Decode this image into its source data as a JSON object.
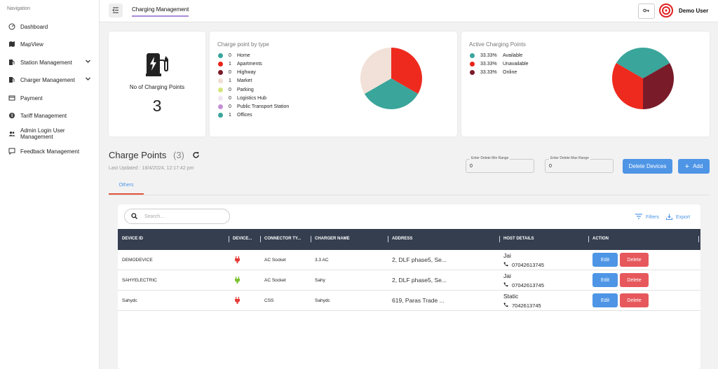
{
  "sidebar": {
    "title": "Navigation",
    "items": [
      {
        "label": "Dashboard",
        "icon": "gauge-icon"
      },
      {
        "label": "MapView",
        "icon": "map-icon"
      },
      {
        "label": "Station Management",
        "icon": "station-icon",
        "expandable": true
      },
      {
        "label": "Charger Management",
        "icon": "charger-icon",
        "expandable": true
      },
      {
        "label": "Payment",
        "icon": "card-icon"
      },
      {
        "label": "Tariff Management",
        "icon": "dollar-icon"
      },
      {
        "label": "Admin Login User Management",
        "icon": "users-icon"
      },
      {
        "label": "Feedback Management",
        "icon": "feedback-icon"
      }
    ]
  },
  "header": {
    "tab": "Charging Management",
    "user_name": "Demo User"
  },
  "summary": {
    "label": "No of Charging Points",
    "count": "3"
  },
  "type_card": {
    "title": "Charge point by type",
    "legend": [
      {
        "count": "0",
        "label": "Home",
        "color": "#3aa59b"
      },
      {
        "count": "1",
        "label": "Apartments",
        "color": "#e8231a"
      },
      {
        "count": "0",
        "label": "Highway",
        "color": "#7a1b2a"
      },
      {
        "count": "1",
        "label": "Market",
        "color": "#f0ddd3"
      },
      {
        "count": "0",
        "label": "Parking",
        "color": "#d4e77e"
      },
      {
        "count": "0",
        "label": "Logistics Hub",
        "color": "#f0e4f2"
      },
      {
        "count": "0",
        "label": "Public Transport Station",
        "color": "#c390d4"
      },
      {
        "count": "1",
        "label": "Offices",
        "color": "#3aa59b"
      }
    ]
  },
  "active_card": {
    "title": "Active Charging Points",
    "legend": [
      {
        "pct": "33.33%",
        "label": "Available",
        "color": "#3aa59b"
      },
      {
        "pct": "33.33%",
        "label": "Unavailable",
        "color": "#e8231a"
      },
      {
        "pct": "33.33%",
        "label": "Online",
        "color": "#7a1b2a"
      }
    ]
  },
  "charge_points": {
    "title": "Charge Points",
    "count": "(3)",
    "last_updated": "Last Updated : 18/4/2024, 12:17:42 pm",
    "min_range_label": "Enter Delete Min Range",
    "min_range_value": "0",
    "max_range_label": "Enter Delete Max Range",
    "max_range_value": "0",
    "delete_devices": "Delete Devices",
    "add": "Add",
    "tab": "Others"
  },
  "table": {
    "search_placeholder": "Search...",
    "filters": "Filters",
    "export": "Export",
    "columns": [
      "DEVICE ID",
      "DEVICE...",
      "CONNECTOR TY...",
      "CHARGER NAME",
      "ADDRESS",
      "HOST DETAILS",
      "ACTION"
    ],
    "edit": "Edit",
    "delete": "Delete",
    "rows": [
      {
        "device_id": "DEMODEVICE",
        "status_color": "#e53935",
        "connector": "AC Socket",
        "charger_name": "3.3 AC",
        "address": "2, DLF phase5, Se...",
        "host_name": "Jai",
        "host_phone": "07042613745"
      },
      {
        "device_id": "SAHYELECTRIC",
        "status_color": "#7cc02e",
        "connector": "AC Socket",
        "charger_name": "Sahy",
        "address": "2, DLF phase5, Se...",
        "host_name": "Jai",
        "host_phone": "07042613745"
      },
      {
        "device_id": "Sahydc",
        "status_color": "#e53935",
        "connector": "CSS",
        "charger_name": "Sahydc",
        "address": "619, Paras Trade ...",
        "host_name": "Static",
        "host_phone": "7042613745"
      }
    ]
  }
}
